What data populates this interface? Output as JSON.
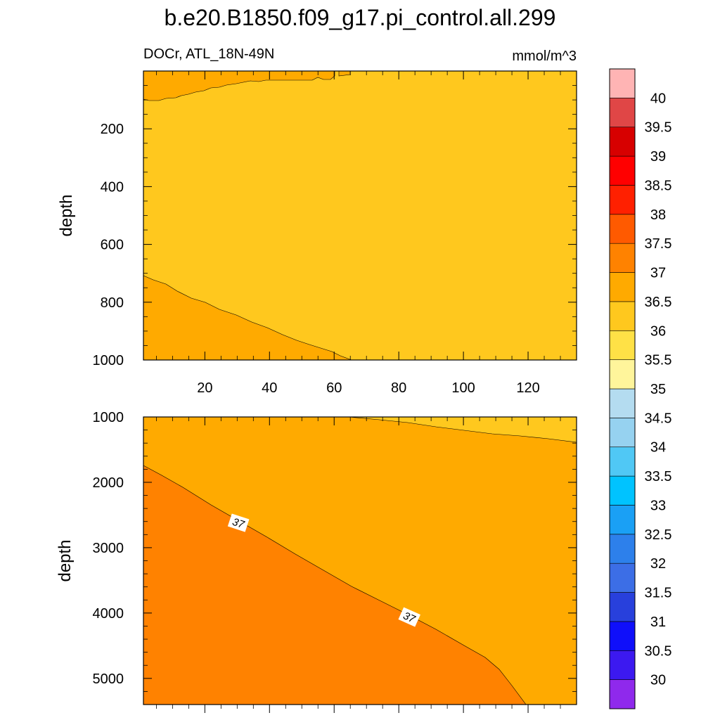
{
  "chart_data": {
    "type": "heatmap",
    "title": "b.e20.B1850.f09_g17.pi_control.all.299",
    "left_subtitle": "DOCr, ATL_18N-49N",
    "right_subtitle": "mmol/m^3",
    "colorbar": {
      "levels": [
        "30",
        "30.5",
        "31",
        "31.5",
        "32",
        "32.5",
        "33",
        "33.5",
        "34",
        "34.5",
        "35",
        "35.5",
        "36",
        "36.5",
        "37",
        "37.5",
        "38",
        "38.5",
        "39",
        "39.5",
        "40"
      ],
      "colors": [
        "#8f29ec",
        "#3c19f0",
        "#0f0ffa",
        "#2840dc",
        "#3c6ee6",
        "#2d80eb",
        "#1aa0f5",
        "#00c3ff",
        "#50c8f5",
        "#96d2f0",
        "#b4dcf0",
        "#fff59b",
        "#ffe146",
        "#ffc81e",
        "#ffaa00",
        "#ff8200",
        "#ff5a00",
        "#ff2000",
        "#ff0000",
        "#d70000",
        "#e04646",
        "#ffb4b4"
      ]
    },
    "panels": [
      {
        "name": "upper",
        "ylabel": "depth",
        "x_range": [
          1,
          135
        ],
        "y_range": [
          0,
          1000
        ],
        "y_reversed": true,
        "x_ticks": [
          "20",
          "40",
          "60",
          "80",
          "100",
          "120"
        ],
        "y_ticks": [
          "200",
          "400",
          "600",
          "800",
          "1000"
        ],
        "background_bin": "36-36.5",
        "regions": [
          {
            "bin": "36.5-37",
            "description": "surface layer 0-100 m near x<60"
          },
          {
            "bin": "36.5-37",
            "description": "deep wedge 700-1000 m for x<65"
          }
        ]
      },
      {
        "name": "lower",
        "ylabel": "depth",
        "x_range": [
          1,
          135
        ],
        "y_range": [
          1000,
          5400
        ],
        "y_reversed": true,
        "y_ticks": [
          "1000",
          "2000",
          "3000",
          "4000",
          "5000"
        ],
        "background_bin": "36.5-37",
        "regions": [
          {
            "bin": "36-36.5",
            "description": "upper-right wedge 1000-1400 m for x>65"
          },
          {
            "bin": "37-37.5",
            "description": "lower-left region below 37 contour"
          }
        ],
        "contour_labels": [
          "37",
          "37"
        ]
      }
    ]
  }
}
